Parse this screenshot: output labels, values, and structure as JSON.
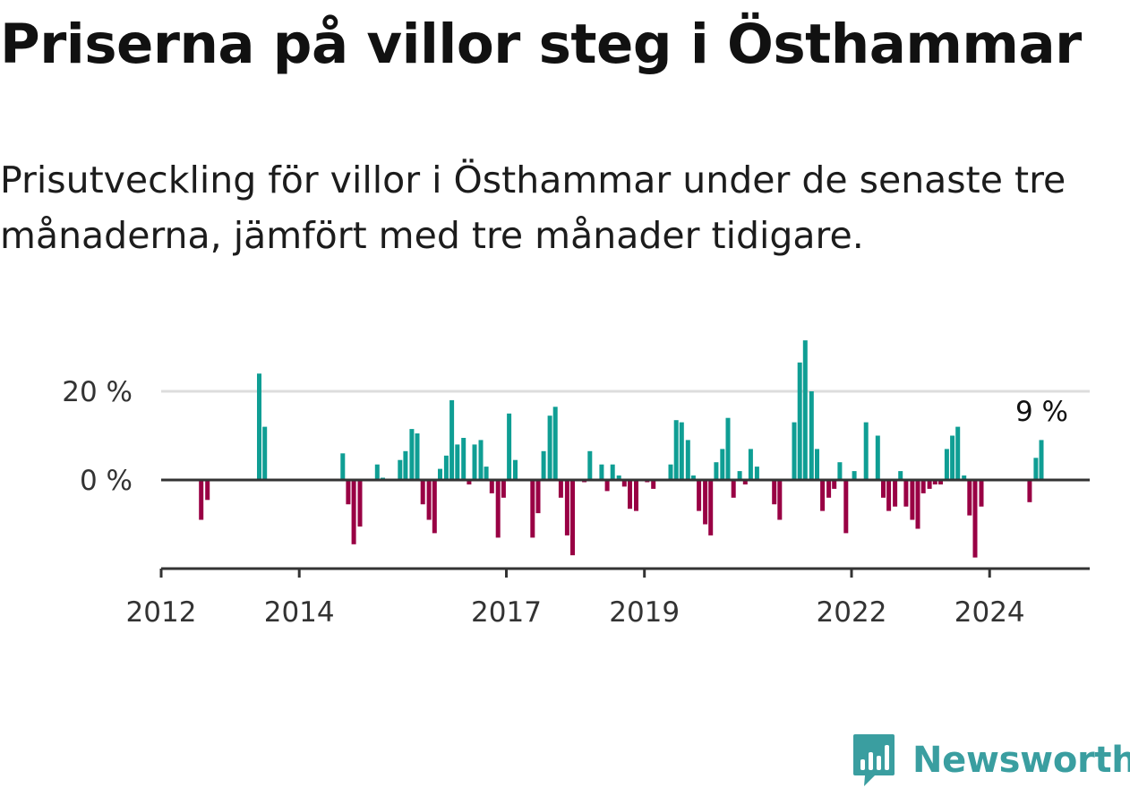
{
  "title": "Priserna på villor steg i Östhammar",
  "subtitle": "Prisutveckling för villor i Östhammar under de senaste tre månaderna, jämfört med tre månader tidigare.",
  "brand": {
    "name": "Newsworthy"
  },
  "colors": {
    "positive": "#0f9e94",
    "negative": "#990044",
    "grid": "#dddddd",
    "axis": "#333333",
    "brand": "#3a9ea0"
  },
  "chart_data": {
    "type": "bar",
    "title": "Priserna på villor steg i Östhammar",
    "xlabel": "",
    "ylabel": "",
    "ylim": [
      -20,
      32
    ],
    "xlim": [
      2012.0,
      2025.45
    ],
    "y_ticks": [
      {
        "value": 0,
        "label": "0 %"
      },
      {
        "value": 20,
        "label": "20 %"
      }
    ],
    "x_ticks": [
      {
        "value": 2012.0,
        "label": "2012"
      },
      {
        "value": 2014.0,
        "label": "2014"
      },
      {
        "value": 2017.0,
        "label": "2017"
      },
      {
        "value": 2019.0,
        "label": "2019"
      },
      {
        "value": 2022.0,
        "label": "2022"
      },
      {
        "value": 2024.0,
        "label": "2024"
      }
    ],
    "last_label": "9 %",
    "x": [
      2012.58,
      2012.67,
      2013.42,
      2013.5,
      2014.63,
      2014.71,
      2014.79,
      2014.88,
      2015.13,
      2015.21,
      2015.46,
      2015.54,
      2015.63,
      2015.71,
      2015.79,
      2015.88,
      2015.96,
      2016.04,
      2016.13,
      2016.21,
      2016.29,
      2016.38,
      2016.46,
      2016.54,
      2016.63,
      2016.71,
      2016.79,
      2016.88,
      2016.96,
      2017.04,
      2017.13,
      2017.38,
      2017.46,
      2017.54,
      2017.63,
      2017.71,
      2017.79,
      2017.88,
      2017.96,
      2018.04,
      2018.13,
      2018.21,
      2018.38,
      2018.46,
      2018.54,
      2018.63,
      2018.71,
      2018.79,
      2018.88,
      2019.04,
      2019.13,
      2019.38,
      2019.46,
      2019.54,
      2019.63,
      2019.71,
      2019.79,
      2019.88,
      2019.96,
      2020.04,
      2020.13,
      2020.21,
      2020.29,
      2020.38,
      2020.46,
      2020.54,
      2020.63,
      2020.88,
      2020.96,
      2021.17,
      2021.25,
      2021.33,
      2021.42,
      2021.5,
      2021.58,
      2021.67,
      2021.75,
      2021.83,
      2021.92,
      2022.04,
      2022.21,
      2022.38,
      2022.46,
      2022.54,
      2022.63,
      2022.71,
      2022.79,
      2022.88,
      2022.96,
      2023.04,
      2023.13,
      2023.21,
      2023.29,
      2023.38,
      2023.46,
      2023.54,
      2023.63,
      2023.71,
      2023.79,
      2023.88,
      2023.96,
      2024.58,
      2024.67,
      2024.75
    ],
    "values": [
      -9,
      -4.5,
      24,
      12,
      6,
      -5.5,
      -14.5,
      -10.5,
      3.5,
      0.5,
      4.5,
      6.5,
      11.5,
      10.5,
      -5.5,
      -9,
      -12,
      2.5,
      5.5,
      18,
      8,
      9.5,
      -1,
      8,
      9,
      3,
      -3,
      -13,
      -4,
      15,
      4.5,
      -13,
      -7.5,
      6.5,
      14.5,
      16.5,
      -4,
      -12.5,
      -17,
      0,
      -0.5,
      6.5,
      3.5,
      -2.5,
      3.5,
      1,
      -1.5,
      -6.5,
      -7,
      -0.5,
      -2,
      3.5,
      13.5,
      13,
      9,
      1,
      -7,
      -10,
      -12.5,
      4,
      7,
      14,
      -4,
      2,
      -1,
      7,
      3,
      -5.5,
      -9,
      13,
      26.5,
      31.5,
      20,
      7,
      -7,
      -4,
      -2,
      4,
      -12,
      2,
      13,
      10,
      -4,
      -7,
      -6,
      2,
      -6,
      -9,
      -11,
      -3,
      -2,
      -1,
      -1,
      7,
      10,
      12,
      1,
      -8,
      -17.5,
      -6,
      0,
      -5,
      5,
      9
    ]
  }
}
